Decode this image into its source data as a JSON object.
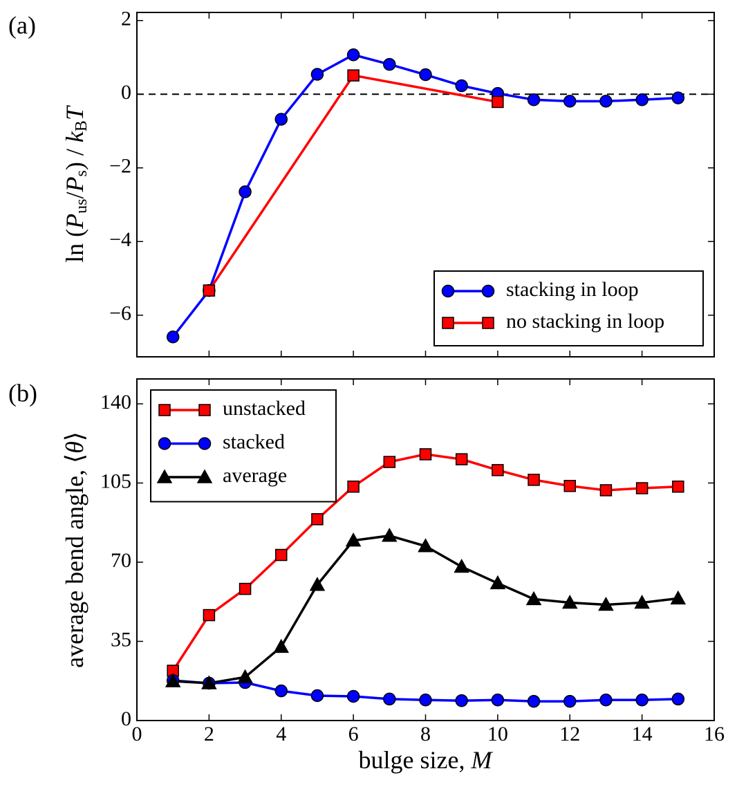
{
  "chart_data": [
    {
      "type": "line",
      "panel_label": "(a)",
      "ylabel": [
        "ln (",
        "P",
        "us",
        "/",
        "P",
        "s",
        ") / ",
        "k",
        "B",
        "T"
      ],
      "xlim": [
        0,
        16
      ],
      "xticks": [
        0,
        2,
        4,
        6,
        8,
        10,
        12,
        14,
        16
      ],
      "show_xtick_labels": false,
      "ylim": [
        -7.13,
        2.22
      ],
      "yticks": [
        {
          "value": -6,
          "label": "−6"
        },
        {
          "value": -4,
          "label": "−4"
        },
        {
          "value": -2,
          "label": "−2"
        },
        0,
        2
      ],
      "hline": 0,
      "legend": "lower right",
      "series": [
        {
          "name": "stacking in loop",
          "color": "#0000ff",
          "marker": "circle",
          "x": [
            1,
            2,
            3,
            4,
            5,
            6,
            7,
            8,
            9,
            10,
            11,
            12,
            13,
            14,
            15
          ],
          "values": [
            -6.59,
            -5.33,
            -2.65,
            -0.68,
            0.54,
            1.07,
            0.81,
            0.53,
            0.23,
            0.02,
            -0.15,
            -0.19,
            -0.19,
            -0.15,
            -0.1
          ]
        },
        {
          "name": "no stacking in loop",
          "color": "#ff0000",
          "marker": "square",
          "x": [
            2,
            6,
            10
          ],
          "values": [
            -5.33,
            0.51,
            -0.21
          ]
        }
      ]
    },
    {
      "type": "line",
      "panel_label": "(b)",
      "ylabel": [
        "average bend angle, ⟨",
        "θ",
        "⟩"
      ],
      "xlabel": [
        "bulge size, ",
        "M"
      ],
      "xlim": [
        0,
        16
      ],
      "xticks": [
        0,
        2,
        4,
        6,
        8,
        10,
        12,
        14,
        16
      ],
      "show_xtick_labels": true,
      "ylim": [
        0,
        151
      ],
      "yticks": [
        0,
        35,
        70,
        105,
        140
      ],
      "legend": "upper left",
      "series": [
        {
          "name": "unstacked",
          "color": "#ff0000",
          "marker": "square",
          "x": [
            1,
            2,
            3,
            4,
            5,
            6,
            7,
            8,
            9,
            10,
            11,
            12,
            13,
            14,
            15
          ],
          "values": [
            22,
            46.6,
            58.2,
            73.2,
            89,
            103.4,
            114.3,
            117.7,
            115.5,
            110.7,
            106.4,
            103.7,
            101.8,
            102.7,
            103.4
          ]
        },
        {
          "name": "stacked",
          "color": "#0000ff",
          "marker": "circle",
          "x": [
            1,
            2,
            3,
            4,
            5,
            6,
            7,
            8,
            9,
            10,
            11,
            12,
            13,
            14,
            15
          ],
          "values": [
            17.7,
            16.5,
            16.8,
            13.1,
            11,
            10.7,
            9.5,
            9.1,
            8.8,
            9.1,
            8.5,
            8.5,
            9.1,
            9.1,
            9.5
          ]
        },
        {
          "name": "average",
          "color": "#000000",
          "marker": "triangle",
          "x": [
            1,
            2,
            3,
            4,
            5,
            6,
            7,
            8,
            9,
            10,
            11,
            12,
            13,
            14,
            15
          ],
          "values": [
            17.4,
            16.5,
            19.2,
            32.6,
            60,
            79.6,
            81.7,
            77.1,
            68,
            60.7,
            53.7,
            52.1,
            51.2,
            52.1,
            54
          ]
        }
      ]
    }
  ]
}
